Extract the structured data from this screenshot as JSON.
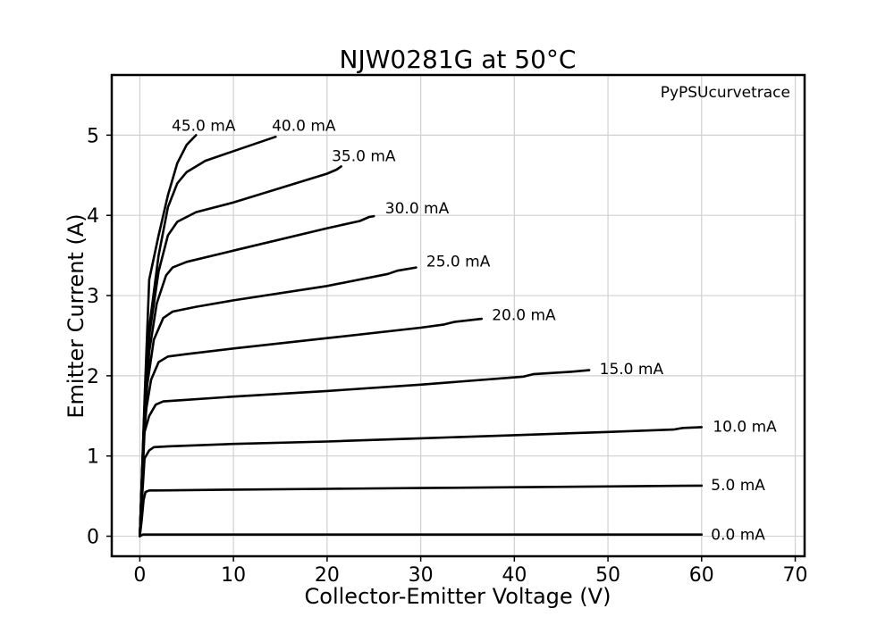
{
  "chart_data": {
    "type": "line",
    "title": "NJW0281G at 50°C",
    "xlabel": "Collector-Emitter Voltage (V)",
    "ylabel": "Emitter Current (A)",
    "watermark": "PyPSUcurvetrace",
    "xlim": [
      -3,
      71
    ],
    "ylim": [
      -0.25,
      5.75
    ],
    "xticks": [
      0,
      10,
      20,
      30,
      40,
      50,
      60,
      70
    ],
    "yticks": [
      0,
      1,
      2,
      3,
      4,
      5
    ],
    "grid": true,
    "series": [
      {
        "name": "0.0 mA",
        "points": [
          [
            0,
            0
          ],
          [
            0.3,
            0.02
          ],
          [
            1,
            0.02
          ],
          [
            10,
            0.02
          ],
          [
            30,
            0.02
          ],
          [
            50,
            0.02
          ],
          [
            60,
            0.02
          ]
        ]
      },
      {
        "name": "5.0 mA",
        "points": [
          [
            0,
            0
          ],
          [
            0.2,
            0.2
          ],
          [
            0.4,
            0.45
          ],
          [
            0.6,
            0.55
          ],
          [
            1,
            0.57
          ],
          [
            2,
            0.57
          ],
          [
            10,
            0.58
          ],
          [
            20,
            0.59
          ],
          [
            30,
            0.6
          ],
          [
            40,
            0.61
          ],
          [
            50,
            0.62
          ],
          [
            60,
            0.63
          ]
        ]
      },
      {
        "name": "10.0 mA",
        "points": [
          [
            0,
            0
          ],
          [
            0.2,
            0.4
          ],
          [
            0.5,
            0.97
          ],
          [
            1,
            1.07
          ],
          [
            1.5,
            1.11
          ],
          [
            3,
            1.12
          ],
          [
            10,
            1.15
          ],
          [
            20,
            1.18
          ],
          [
            30,
            1.22
          ],
          [
            40,
            1.26
          ],
          [
            50,
            1.3
          ],
          [
            57,
            1.33
          ],
          [
            58,
            1.35
          ],
          [
            60,
            1.36
          ]
        ]
      },
      {
        "name": "15.0 mA",
        "points": [
          [
            0,
            0
          ],
          [
            0.3,
            0.8
          ],
          [
            0.5,
            1.3
          ],
          [
            1,
            1.5
          ],
          [
            1.7,
            1.64
          ],
          [
            2.5,
            1.68
          ],
          [
            5,
            1.7
          ],
          [
            10,
            1.74
          ],
          [
            20,
            1.81
          ],
          [
            30,
            1.89
          ],
          [
            41,
            1.99
          ],
          [
            42,
            2.02
          ],
          [
            46,
            2.05
          ],
          [
            48,
            2.07
          ]
        ]
      },
      {
        "name": "20.0 mA",
        "points": [
          [
            0,
            0
          ],
          [
            0.4,
            1.2
          ],
          [
            0.7,
            1.6
          ],
          [
            1.2,
            1.95
          ],
          [
            2,
            2.17
          ],
          [
            3,
            2.24
          ],
          [
            5,
            2.27
          ],
          [
            10,
            2.34
          ],
          [
            20,
            2.47
          ],
          [
            30,
            2.6
          ],
          [
            32.5,
            2.64
          ],
          [
            33.5,
            2.67
          ],
          [
            36.5,
            2.71
          ]
        ]
      },
      {
        "name": "25.0 mA",
        "points": [
          [
            0,
            0
          ],
          [
            0.4,
            1.3
          ],
          [
            0.8,
            1.9
          ],
          [
            1.5,
            2.45
          ],
          [
            2.5,
            2.72
          ],
          [
            3.5,
            2.8
          ],
          [
            6,
            2.86
          ],
          [
            10,
            2.94
          ],
          [
            20,
            3.12
          ],
          [
            26.5,
            3.27
          ],
          [
            27.5,
            3.31
          ],
          [
            29.5,
            3.35
          ]
        ]
      },
      {
        "name": "30.0 mA",
        "points": [
          [
            0,
            0
          ],
          [
            0.5,
            1.5
          ],
          [
            1,
            2.3
          ],
          [
            1.8,
            2.9
          ],
          [
            2.8,
            3.25
          ],
          [
            3.5,
            3.35
          ],
          [
            5,
            3.42
          ],
          [
            10,
            3.56
          ],
          [
            20,
            3.84
          ],
          [
            23.5,
            3.93
          ],
          [
            24.5,
            3.98
          ],
          [
            25,
            3.99
          ]
        ]
      },
      {
        "name": "35.0 mA",
        "points": [
          [
            0,
            0
          ],
          [
            0.5,
            1.6
          ],
          [
            1,
            2.5
          ],
          [
            2,
            3.3
          ],
          [
            3,
            3.75
          ],
          [
            4,
            3.92
          ],
          [
            6,
            4.04
          ],
          [
            10,
            4.16
          ],
          [
            20,
            4.52
          ],
          [
            21,
            4.57
          ],
          [
            21.5,
            4.61
          ]
        ]
      },
      {
        "name": "40.0 mA",
        "points": [
          [
            0,
            0
          ],
          [
            0.5,
            1.6
          ],
          [
            1,
            2.6
          ],
          [
            2,
            3.5
          ],
          [
            3,
            4.1
          ],
          [
            4,
            4.4
          ],
          [
            5,
            4.54
          ],
          [
            7,
            4.68
          ],
          [
            10,
            4.8
          ],
          [
            14.5,
            4.98
          ]
        ]
      },
      {
        "name": "45.0 mA",
        "points": [
          [
            0,
            0
          ],
          [
            0.5,
            1.7
          ],
          [
            1,
            3.2
          ],
          [
            2,
            3.75
          ],
          [
            3,
            4.25
          ],
          [
            4,
            4.65
          ],
          [
            5,
            4.88
          ],
          [
            6,
            5.0
          ]
        ]
      }
    ],
    "labels": [
      {
        "text": "45.0 mA",
        "x": 3.4,
        "y": 5.12
      },
      {
        "text": "40.0 mA",
        "x": 14.1,
        "y": 5.12
      },
      {
        "text": "35.0 mA",
        "x": 20.5,
        "y": 4.74
      },
      {
        "text": "30.0 mA",
        "x": 26.2,
        "y": 4.09
      },
      {
        "text": "25.0 mA",
        "x": 30.6,
        "y": 3.43
      },
      {
        "text": "20.0 mA",
        "x": 37.6,
        "y": 2.76
      },
      {
        "text": "15.0 mA",
        "x": 49.1,
        "y": 2.09
      },
      {
        "text": "10.0 mA",
        "x": 61.2,
        "y": 1.37
      },
      {
        "text": "5.0 mA",
        "x": 61.0,
        "y": 0.64
      },
      {
        "text": "0.0 mA",
        "x": 61.0,
        "y": 0.02
      }
    ]
  }
}
